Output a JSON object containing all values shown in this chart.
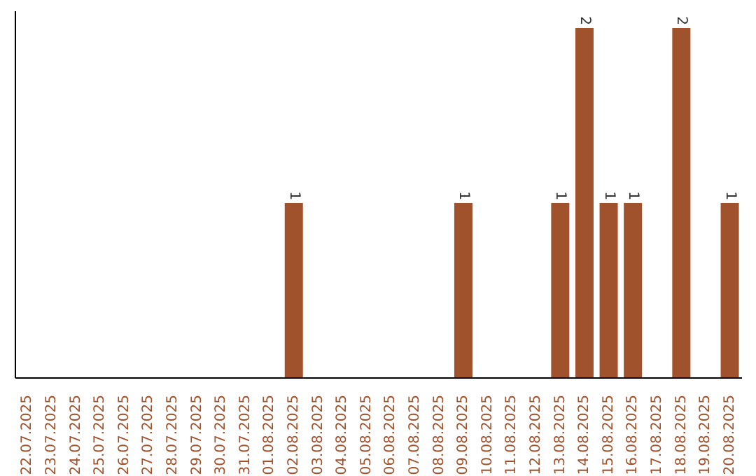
{
  "chart_data": {
    "type": "bar",
    "categories": [
      "22.07.2025",
      "23.07.2025",
      "24.07.2025",
      "25.07.2025",
      "26.07.2025",
      "27.07.2025",
      "28.07.2025",
      "29.07.2025",
      "30.07.2025",
      "31.07.2025",
      "01.08.2025",
      "02.08.2025",
      "03.08.2025",
      "04.08.2025",
      "05.08.2025",
      "06.08.2025",
      "07.08.2025",
      "08.08.2025",
      "09.08.2025",
      "10.08.2025",
      "11.08.2025",
      "12.08.2025",
      "13.08.2025",
      "14.08.2025",
      "15.08.2025",
      "16.08.2025",
      "17.08.2025",
      "18.08.2025",
      "19.08.2025",
      "20.08.2025"
    ],
    "values": [
      0,
      0,
      0,
      0,
      0,
      0,
      0,
      0,
      0,
      0,
      0,
      1,
      0,
      0,
      0,
      0,
      0,
      0,
      1,
      0,
      0,
      0,
      1,
      2,
      1,
      1,
      0,
      2,
      0,
      1
    ],
    "value_labels": [
      null,
      null,
      null,
      null,
      null,
      null,
      null,
      null,
      null,
      null,
      null,
      "1",
      null,
      null,
      null,
      null,
      null,
      null,
      "1",
      null,
      null,
      null,
      "1",
      "2",
      "1",
      "1",
      null,
      "2",
      null,
      "1"
    ],
    "color": "#a0522d",
    "grid": false,
    "legend": false,
    "tick_labels": "x"
  }
}
